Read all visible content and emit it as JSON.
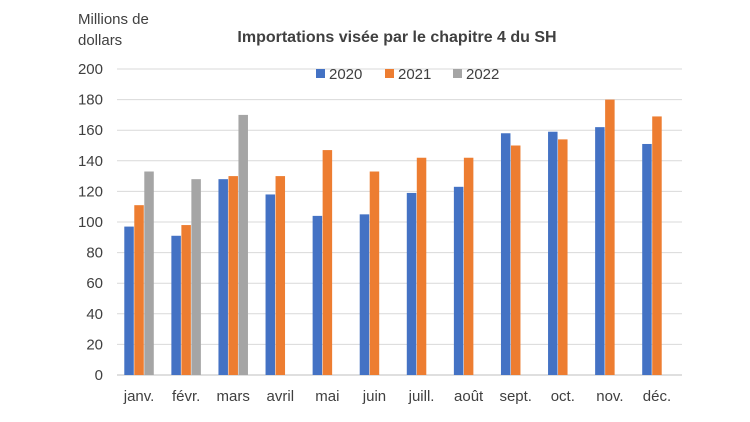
{
  "chart_data": {
    "type": "bar",
    "title": "Importations visée par le chapitre 4 du SH",
    "ylabel_line1": "Millions de",
    "ylabel_line2": "dollars",
    "ylim": [
      0,
      200
    ],
    "yticks": [
      0,
      20,
      40,
      60,
      80,
      100,
      120,
      140,
      160,
      180,
      200
    ],
    "grid": true,
    "legend_position": "top",
    "categories": [
      "janv.",
      "févr.",
      "mars",
      "avril",
      "mai",
      "juin",
      "juill.",
      "août",
      "sept.",
      "oct.",
      "nov.",
      "déc."
    ],
    "series": [
      {
        "name": "2020",
        "color": "#4472C4",
        "values": [
          97,
          91,
          128,
          118,
          104,
          105,
          119,
          123,
          158,
          159,
          162,
          151
        ]
      },
      {
        "name": "2021",
        "color": "#ED7D31",
        "values": [
          111,
          98,
          130,
          130,
          147,
          133,
          142,
          142,
          150,
          154,
          180,
          169
        ]
      },
      {
        "name": "2022",
        "color": "#A5A5A5",
        "values": [
          133,
          128,
          170,
          null,
          null,
          null,
          null,
          null,
          null,
          null,
          null,
          null
        ]
      }
    ]
  }
}
